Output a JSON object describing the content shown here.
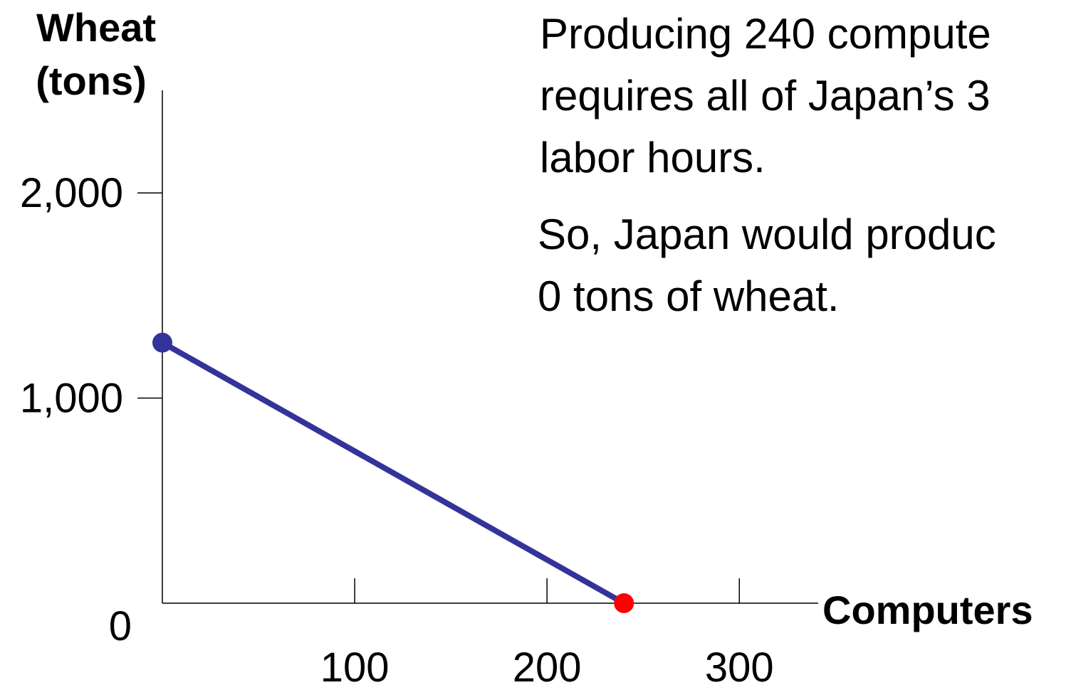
{
  "chart_data": {
    "type": "line",
    "y_label_lines": [
      "Wheat",
      "(tons)"
    ],
    "x_label": "Computers",
    "annotation_lines": [
      "Producing 240 compute",
      "requires all of Japan’s 3",
      "labor hours.",
      "So, Japan would produc",
      "0 tons of wheat."
    ],
    "x": [
      0,
      240
    ],
    "series": [
      {
        "color": "#333399",
        "point_colors": [
          "#333399",
          "#ff0000"
        ],
        "values": [
          1270,
          0
        ]
      }
    ],
    "xlim": [
      0,
      341
    ],
    "xticks": [
      100,
      200,
      300
    ],
    "ylim": [
      0,
      2500
    ],
    "yticks": [
      0,
      {
        "value": 1000,
        "label": "1,000"
      },
      {
        "value": 2000,
        "label": "2,000"
      }
    ]
  }
}
